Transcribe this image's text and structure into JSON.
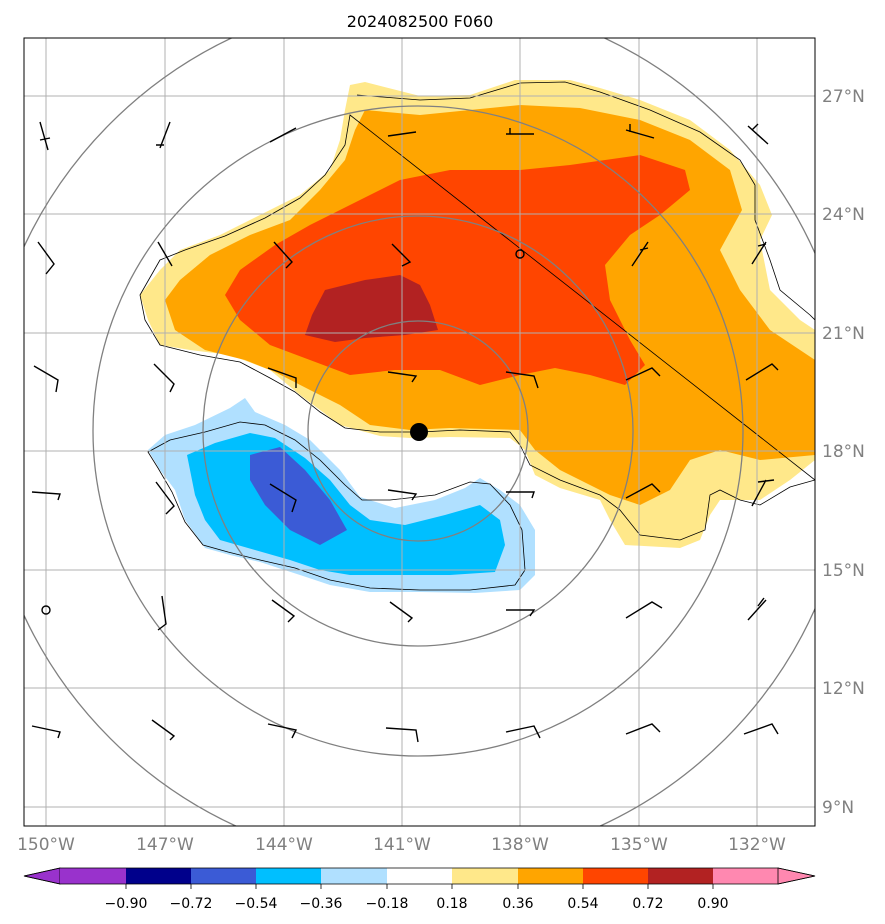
{
  "title": "2024082500 F060",
  "map": {
    "lon_range": [
      -150.4,
      -131.4
    ],
    "lat_range": [
      8.4,
      28.5
    ],
    "lat_labels": [
      "9°N",
      "12°N",
      "15°N",
      "18°N",
      "21°N",
      "24°N",
      "27°N"
    ],
    "lon_labels": [
      "150°W",
      "147°W",
      "144°W",
      "141°W",
      "138°W",
      "135°W",
      "132°W"
    ],
    "gridline_color": "#b0b0b0",
    "storm_center": {
      "lon": -140.6,
      "lat": 18.5
    },
    "range_ring_color": "#808080"
  },
  "colorbar": {
    "tick_labels": [
      "−0.90",
      "−0.72",
      "−0.54",
      "−0.36",
      "−0.18",
      "0.18",
      "0.36",
      "0.54",
      "0.72",
      "0.90"
    ],
    "colors": [
      "#9932cc",
      "#00008b",
      "#3b5bd6",
      "#00bfff",
      "#b0e0ff",
      "#ffffff",
      "#ffe88a",
      "#ffa500",
      "#ff4500",
      "#b22222",
      "#ff88b0"
    ]
  },
  "field_colors": {
    "pos_1": "#ffe88a",
    "pos_2": "#ffa500",
    "pos_3": "#ff4500",
    "pos_4": "#b22222",
    "neg_1": "#b0e0ff",
    "neg_2": "#00bfff",
    "neg_3": "#3b5bd6"
  }
}
